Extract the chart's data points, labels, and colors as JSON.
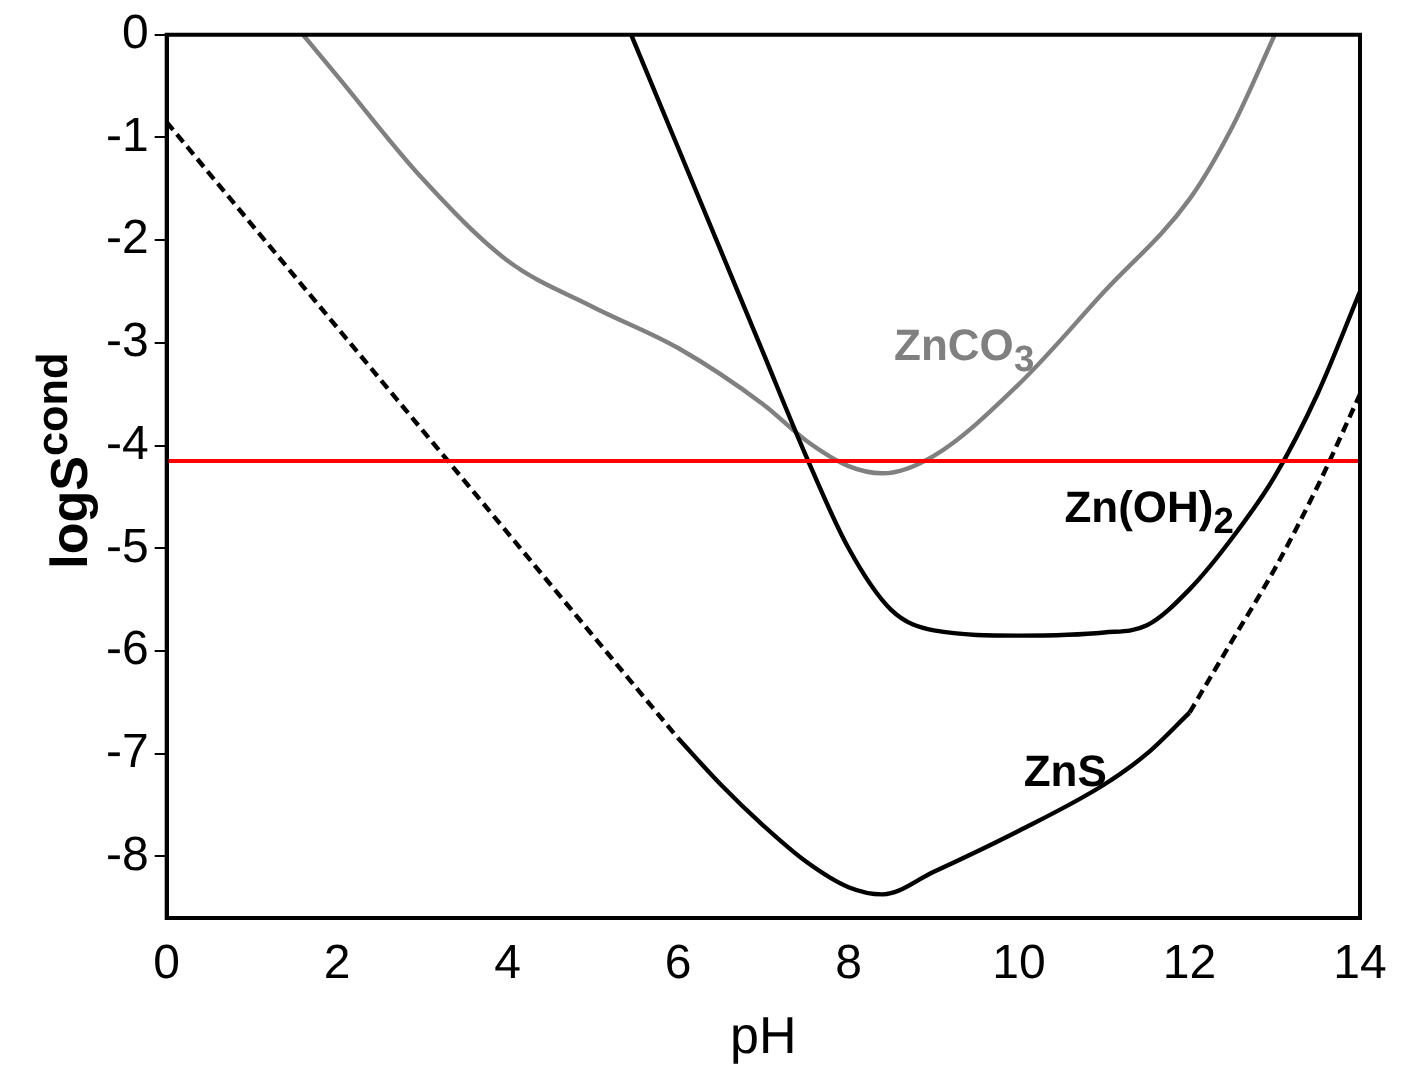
{
  "chart_data": {
    "type": "line",
    "xlabel": "pH",
    "ylabel": "logS$^{cond}$",
    "xlim": [
      0,
      14
    ],
    "xticks": [
      0,
      2,
      4,
      6,
      8,
      10,
      12,
      14
    ],
    "ylim": [
      -8.6,
      0
    ],
    "yticks": [
      -8,
      -7,
      -6,
      -5,
      -4,
      -3,
      -2,
      -1,
      0
    ],
    "grid": false,
    "legend": false,
    "marker": "none",
    "series": [
      {
        "color": "#000000",
        "line_style": "dashed",
        "x": [
          0,
          1,
          2,
          3,
          4,
          5,
          6
        ],
        "values": [
          -0.85,
          -1.85,
          -2.85,
          -3.85,
          -4.85,
          -5.85,
          -6.85
        ]
      },
      {
        "name": "ZnS",
        "color": "#000000",
        "line_style": "solid",
        "x": [
          6,
          6.5,
          7,
          7.5,
          8,
          8.4,
          9,
          10,
          11,
          11.5,
          12
        ],
        "values": [
          -6.85,
          -7.3,
          -7.7,
          -8.05,
          -8.3,
          -8.37,
          -8.15,
          -7.75,
          -7.3,
          -7.0,
          -6.6
        ]
      },
      {
        "color": "#000000",
        "line_style": "dashed",
        "x": [
          12,
          12.5,
          13,
          13.5,
          14
        ],
        "values": [
          -6.6,
          -5.9,
          -5.2,
          -4.4,
          -3.5
        ]
      },
      {
        "name": "Zn(OH)$_{2}$",
        "color": "#000000",
        "line_style": "solid",
        "x": [
          5.45,
          6,
          7,
          7.5,
          8,
          8.5,
          9,
          10,
          11,
          11.5,
          12,
          12.5,
          13,
          13.5,
          14
        ],
        "values": [
          0,
          -1.1,
          -3.1,
          -4.1,
          -5.0,
          -5.6,
          -5.8,
          -5.85,
          -5.82,
          -5.75,
          -5.4,
          -4.9,
          -4.3,
          -3.5,
          -2.5
        ]
      },
      {
        "name": "ZnCO$_{3}$",
        "color": "#808080",
        "line_style": "solid",
        "x": [
          1.6,
          2,
          3,
          4,
          5,
          6,
          7,
          7.5,
          8,
          8.4,
          9,
          10,
          11,
          12,
          12.5,
          13
        ],
        "values": [
          0,
          -0.4,
          -1.4,
          -2.2,
          -2.65,
          -3.05,
          -3.6,
          -3.95,
          -4.2,
          -4.27,
          -4.1,
          -3.4,
          -2.5,
          -1.6,
          -0.9,
          0
        ]
      }
    ],
    "ref_lines": [
      {
        "axis": "y",
        "value": -4.15,
        "color": "#ff0000"
      }
    ]
  }
}
